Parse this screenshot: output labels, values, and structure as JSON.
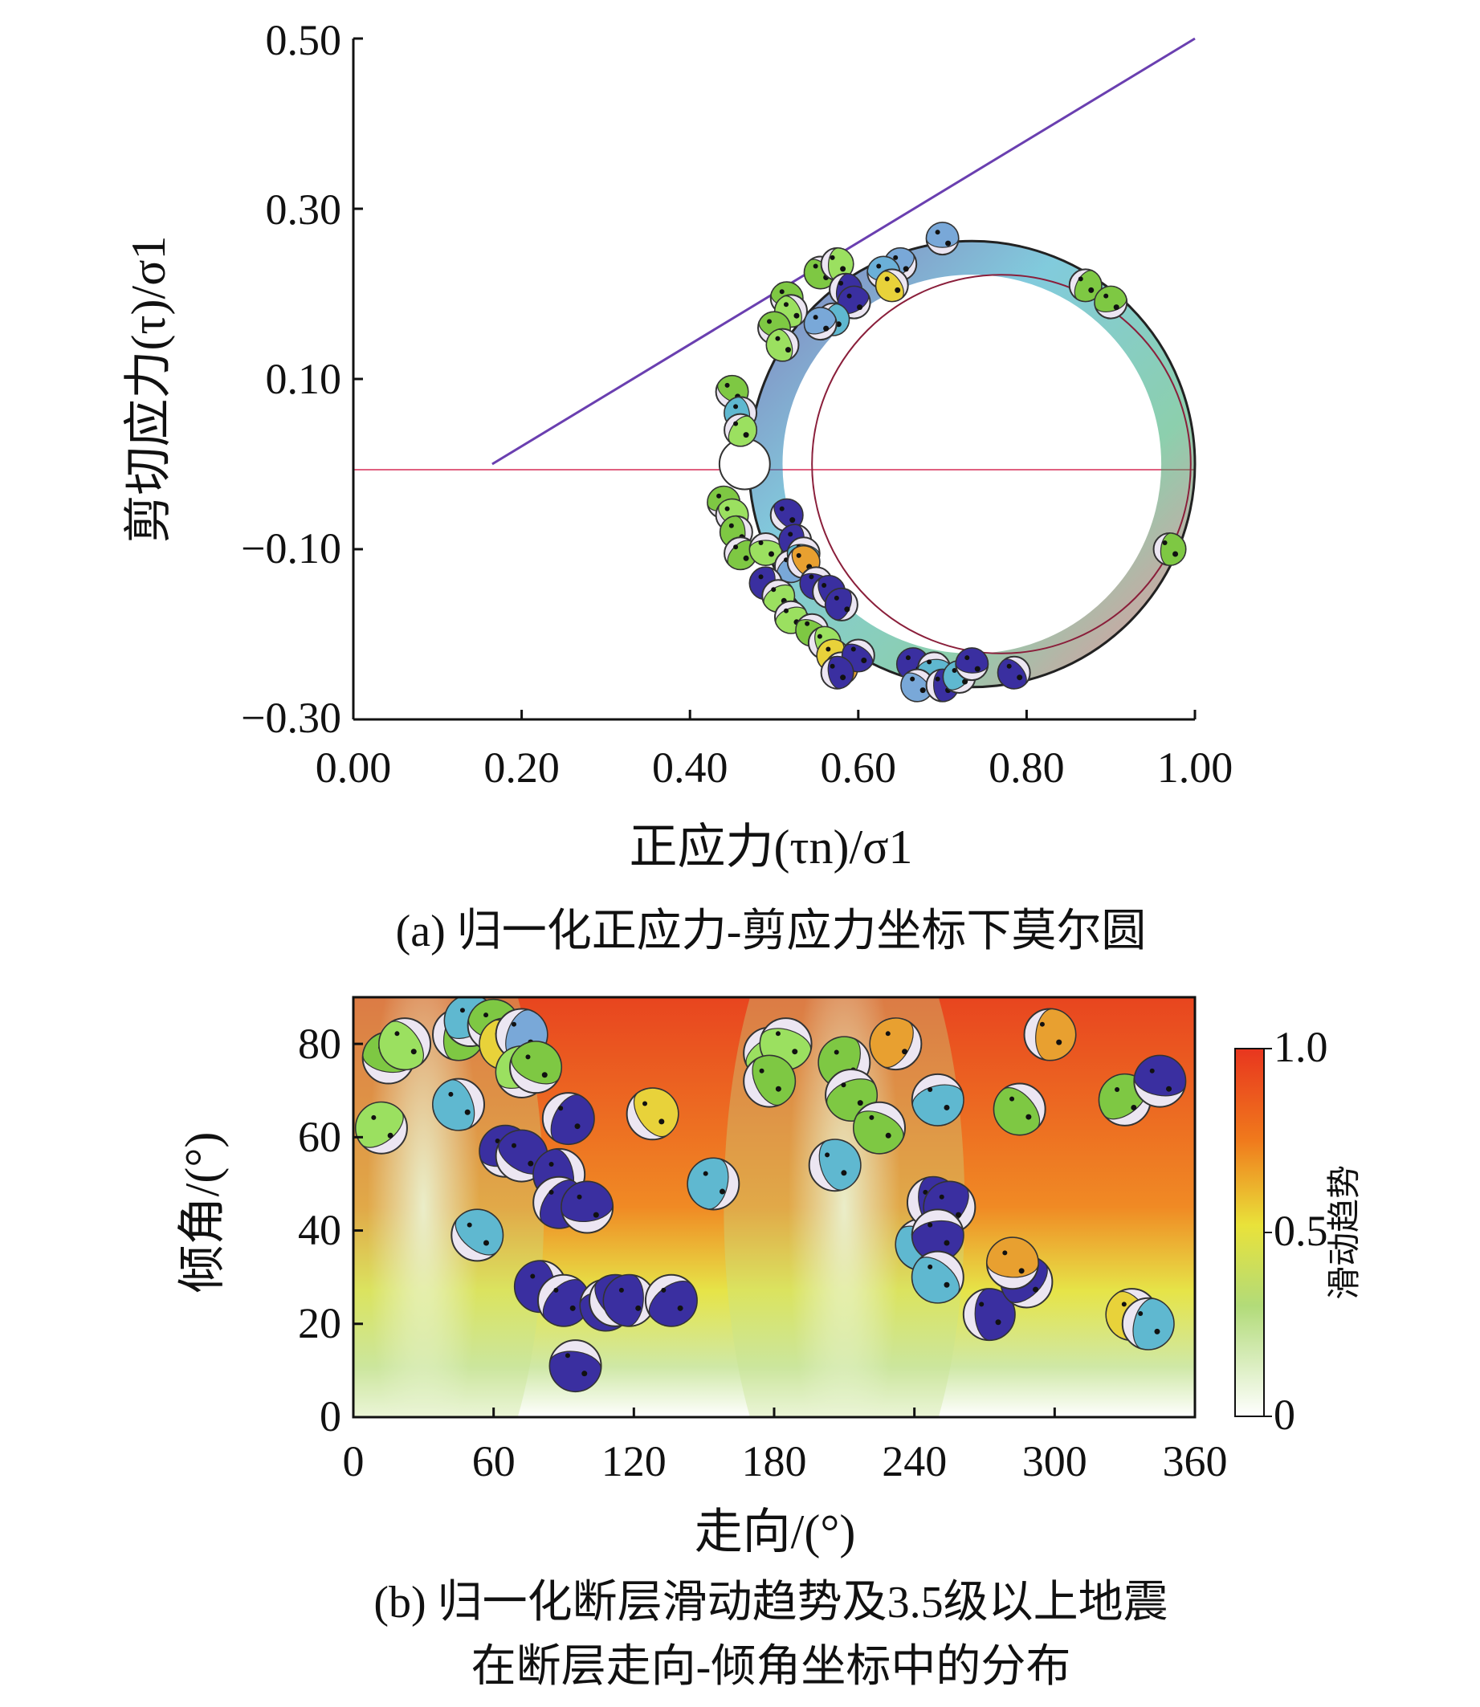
{
  "chart_data": [
    {
      "id": "a",
      "type": "scatter",
      "caption": "(a) 归一化正应力-剪应力坐标下莫尔圆",
      "xlabel": "正应力(τn)/σ1",
      "ylabel": "剪切应力(τ)/σ1",
      "xlim": [
        0,
        1
      ],
      "ylim": [
        -0.3,
        0.5
      ],
      "xticks": [
        "0.00",
        "0.20",
        "0.40",
        "0.60",
        "0.80",
        "1.00"
      ],
      "yticks": [
        "0.50",
        "0.30",
        "0.10",
        "−0.10",
        "−0.30"
      ],
      "mohr_circle": {
        "center": [
          0.735,
          0
        ],
        "radius": 0.265
      },
      "inner_circle": {
        "center": [
          0.77,
          0
        ],
        "radius": 0.225
      },
      "small_circle": {
        "center": [
          0.465,
          0
        ],
        "radius": 0.03
      },
      "failure_line": [
        [
          0.165,
          0
        ],
        [
          1.0,
          0.5
        ]
      ],
      "zero_line": 0,
      "events": [
        {
          "x": 0.7,
          "y": 0.265,
          "c": "#79a8d8"
        },
        {
          "x": 0.555,
          "y": 0.225,
          "c": "#7ec843"
        },
        {
          "x": 0.575,
          "y": 0.235,
          "c": "#9be060"
        },
        {
          "x": 0.65,
          "y": 0.235,
          "c": "#79a8d8"
        },
        {
          "x": 0.63,
          "y": 0.225,
          "c": "#6bb0d8"
        },
        {
          "x": 0.64,
          "y": 0.21,
          "c": "#e8d23a"
        },
        {
          "x": 0.585,
          "y": 0.205,
          "c": "#3a2fa0"
        },
        {
          "x": 0.595,
          "y": 0.19,
          "c": "#3a2fa0"
        },
        {
          "x": 0.515,
          "y": 0.195,
          "c": "#7ec843"
        },
        {
          "x": 0.52,
          "y": 0.18,
          "c": "#9be060"
        },
        {
          "x": 0.57,
          "y": 0.17,
          "c": "#5fb8d0"
        },
        {
          "x": 0.555,
          "y": 0.165,
          "c": "#79a8d8"
        },
        {
          "x": 0.5,
          "y": 0.16,
          "c": "#7ec843"
        },
        {
          "x": 0.51,
          "y": 0.14,
          "c": "#9be060"
        },
        {
          "x": 0.87,
          "y": 0.21,
          "c": "#7ec843"
        },
        {
          "x": 0.9,
          "y": 0.19,
          "c": "#7ec843"
        },
        {
          "x": 0.45,
          "y": 0.085,
          "c": "#7ec843"
        },
        {
          "x": 0.46,
          "y": 0.06,
          "c": "#5fb8d0"
        },
        {
          "x": 0.46,
          "y": 0.04,
          "c": "#9be060"
        },
        {
          "x": 0.44,
          "y": -0.045,
          "c": "#7ec843"
        },
        {
          "x": 0.45,
          "y": -0.06,
          "c": "#9be060"
        },
        {
          "x": 0.455,
          "y": -0.08,
          "c": "#7ec843"
        },
        {
          "x": 0.46,
          "y": -0.105,
          "c": "#7ec843"
        },
        {
          "x": 0.49,
          "y": -0.1,
          "c": "#9be060"
        },
        {
          "x": 0.515,
          "y": -0.06,
          "c": "#3a2fa0"
        },
        {
          "x": 0.525,
          "y": -0.09,
          "c": "#3a2fa0"
        },
        {
          "x": 0.52,
          "y": -0.12,
          "c": "#79a8d8"
        },
        {
          "x": 0.535,
          "y": -0.105,
          "c": "#5fb8d0"
        },
        {
          "x": 0.535,
          "y": -0.115,
          "c": "#e8a030"
        },
        {
          "x": 0.49,
          "y": -0.14,
          "c": "#3a2fa0"
        },
        {
          "x": 0.505,
          "y": -0.155,
          "c": "#9be060"
        },
        {
          "x": 0.55,
          "y": -0.14,
          "c": "#3a2fa0"
        },
        {
          "x": 0.565,
          "y": -0.15,
          "c": "#3a2fa0"
        },
        {
          "x": 0.58,
          "y": -0.165,
          "c": "#3a2fa0"
        },
        {
          "x": 0.52,
          "y": -0.18,
          "c": "#9be060"
        },
        {
          "x": 0.545,
          "y": -0.195,
          "c": "#7ec843"
        },
        {
          "x": 0.56,
          "y": -0.21,
          "c": "#9be060"
        },
        {
          "x": 0.57,
          "y": -0.225,
          "c": "#e8d23a"
        },
        {
          "x": 0.58,
          "y": -0.24,
          "c": "#e8a030"
        },
        {
          "x": 0.6,
          "y": -0.225,
          "c": "#3a2fa0"
        },
        {
          "x": 0.575,
          "y": -0.245,
          "c": "#3a2fa0"
        },
        {
          "x": 0.665,
          "y": -0.235,
          "c": "#3a2fa0"
        },
        {
          "x": 0.69,
          "y": -0.24,
          "c": "#5fb8d0"
        },
        {
          "x": 0.67,
          "y": -0.26,
          "c": "#79a8d8"
        },
        {
          "x": 0.7,
          "y": -0.26,
          "c": "#3a2fa0"
        },
        {
          "x": 0.72,
          "y": -0.25,
          "c": "#5fb8d0"
        },
        {
          "x": 0.735,
          "y": -0.235,
          "c": "#3a2fa0"
        },
        {
          "x": 0.785,
          "y": -0.245,
          "c": "#3a2fa0"
        },
        {
          "x": 0.97,
          "y": -0.1,
          "c": "#7ec843"
        }
      ]
    },
    {
      "id": "b",
      "type": "heatmap",
      "caption_lines": [
        "(b) 归一化断层滑动趋势及3.5级以上地震",
        "在断层走向-倾角坐标中的分布"
      ],
      "xlabel": "走向/(°)",
      "ylabel": "倾角/(°)",
      "xlim": [
        0,
        360
      ],
      "ylim": [
        0,
        90
      ],
      "xticks": [
        "0",
        "60",
        "120",
        "180",
        "240",
        "300",
        "360"
      ],
      "yticks": [
        "80",
        "60",
        "40",
        "20",
        "0"
      ],
      "colorbar": {
        "label": "滑动趋势",
        "ticks": [
          "1.0",
          "0.5",
          "0"
        ],
        "colors": [
          "#ffffff",
          "#b2db79",
          "#e9e23a",
          "#f07a1c",
          "#e8361f"
        ]
      },
      "events": [
        {
          "x": 12,
          "y": 62,
          "c": "#9be060"
        },
        {
          "x": 15,
          "y": 77,
          "c": "#7ec843"
        },
        {
          "x": 22,
          "y": 80,
          "c": "#9be060"
        },
        {
          "x": 45,
          "y": 82,
          "c": "#7ec843"
        },
        {
          "x": 50,
          "y": 85,
          "c": "#5fb8d0"
        },
        {
          "x": 60,
          "y": 84,
          "c": "#7ec843"
        },
        {
          "x": 65,
          "y": 80,
          "c": "#e8d23a"
        },
        {
          "x": 72,
          "y": 82,
          "c": "#79a8d8"
        },
        {
          "x": 72,
          "y": 74,
          "c": "#9be060"
        },
        {
          "x": 78,
          "y": 75,
          "c": "#7ec843"
        },
        {
          "x": 45,
          "y": 67,
          "c": "#5fb8d0"
        },
        {
          "x": 92,
          "y": 64,
          "c": "#3a2fa0"
        },
        {
          "x": 65,
          "y": 57,
          "c": "#3a2fa0"
        },
        {
          "x": 72,
          "y": 56,
          "c": "#3a2fa0"
        },
        {
          "x": 88,
          "y": 52,
          "c": "#3a2fa0"
        },
        {
          "x": 88,
          "y": 46,
          "c": "#3a2fa0"
        },
        {
          "x": 100,
          "y": 45,
          "c": "#3a2fa0"
        },
        {
          "x": 53,
          "y": 39,
          "c": "#5fb8d0"
        },
        {
          "x": 80,
          "y": 28,
          "c": "#3a2fa0"
        },
        {
          "x": 90,
          "y": 25,
          "c": "#3a2fa0"
        },
        {
          "x": 108,
          "y": 24,
          "c": "#3a2fa0"
        },
        {
          "x": 112,
          "y": 25,
          "c": "#3a2fa0"
        },
        {
          "x": 118,
          "y": 25,
          "c": "#3a2fa0"
        },
        {
          "x": 136,
          "y": 25,
          "c": "#3a2fa0"
        },
        {
          "x": 95,
          "y": 11,
          "c": "#3a2fa0"
        },
        {
          "x": 128,
          "y": 65,
          "c": "#e8d23a"
        },
        {
          "x": 154,
          "y": 50,
          "c": "#5fb8d0"
        },
        {
          "x": 178,
          "y": 78,
          "c": "#9be060"
        },
        {
          "x": 185,
          "y": 80,
          "c": "#9be060"
        },
        {
          "x": 178,
          "y": 72,
          "c": "#7ec843"
        },
        {
          "x": 210,
          "y": 76,
          "c": "#7ec843"
        },
        {
          "x": 213,
          "y": 69,
          "c": "#7ec843"
        },
        {
          "x": 225,
          "y": 62,
          "c": "#7ec843"
        },
        {
          "x": 206,
          "y": 54,
          "c": "#5fb8d0"
        },
        {
          "x": 232,
          "y": 80,
          "c": "#e8a030"
        },
        {
          "x": 250,
          "y": 68,
          "c": "#5fb8d0"
        },
        {
          "x": 243,
          "y": 37,
          "c": "#5fb8d0"
        },
        {
          "x": 248,
          "y": 46,
          "c": "#3a2fa0"
        },
        {
          "x": 255,
          "y": 45,
          "c": "#3a2fa0"
        },
        {
          "x": 250,
          "y": 39,
          "c": "#3a2fa0"
        },
        {
          "x": 250,
          "y": 30,
          "c": "#5fb8d0"
        },
        {
          "x": 272,
          "y": 22,
          "c": "#3a2fa0"
        },
        {
          "x": 288,
          "y": 29,
          "c": "#3a2fa0"
        },
        {
          "x": 282,
          "y": 33,
          "c": "#e8a030"
        },
        {
          "x": 285,
          "y": 66,
          "c": "#7ec843"
        },
        {
          "x": 298,
          "y": 82,
          "c": "#e8a030"
        },
        {
          "x": 330,
          "y": 68,
          "c": "#7ec843"
        },
        {
          "x": 345,
          "y": 72,
          "c": "#3a2fa0"
        },
        {
          "x": 333,
          "y": 22,
          "c": "#e8d23a"
        },
        {
          "x": 340,
          "y": 20,
          "c": "#5fb8d0"
        }
      ]
    }
  ]
}
